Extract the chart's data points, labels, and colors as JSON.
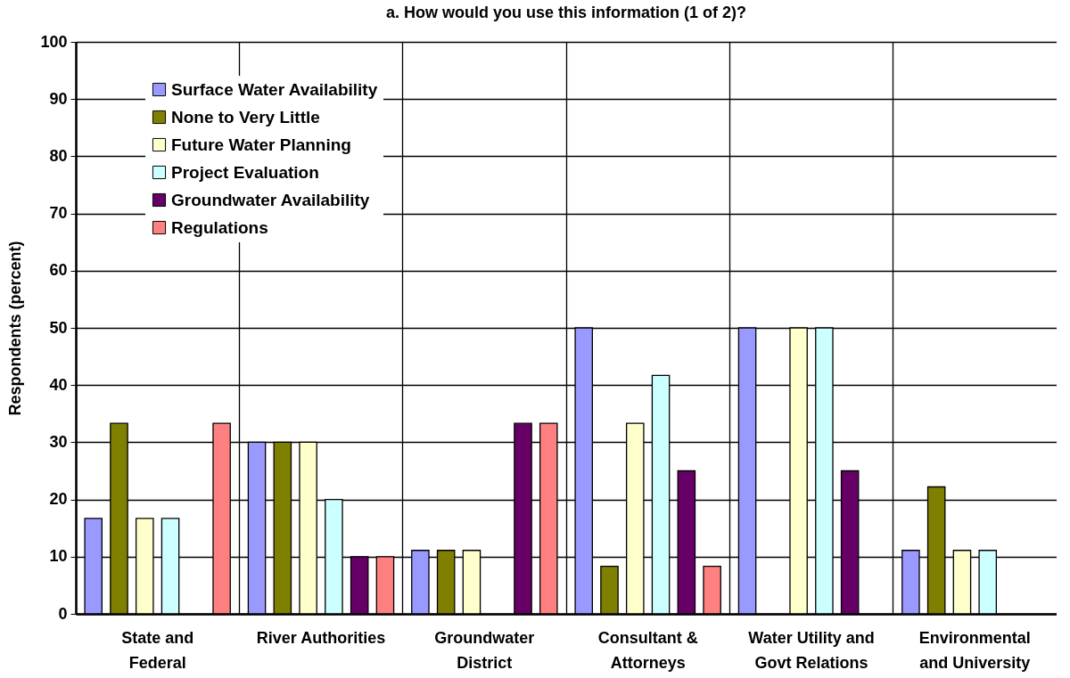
{
  "chart_data": {
    "type": "bar",
    "title": "a. How would you use this information (1 of 2)?",
    "ylabel": "Respondents (percent)",
    "categories": [
      "State and Federal",
      "River Authorities",
      "Groundwater District",
      "Consultant & Attorneys",
      "Water Utility and Govt Relations",
      "Environmental and University"
    ],
    "series": [
      {
        "name": "Surface Water Availability",
        "color": "#9999ff",
        "values": [
          16.7,
          30,
          11.1,
          50,
          50,
          11.1
        ]
      },
      {
        "name": "None to Very Little",
        "color": "#808000",
        "values": [
          33.3,
          30,
          11.1,
          8.3,
          0,
          22.2
        ]
      },
      {
        "name": "Future Water Planning",
        "color": "#ffffcc",
        "values": [
          16.7,
          30,
          11.1,
          33.3,
          50,
          11.1
        ]
      },
      {
        "name": "Project Evaluation",
        "color": "#ccffff",
        "values": [
          16.7,
          20,
          0,
          41.7,
          50,
          11.1
        ]
      },
      {
        "name": "Groundwater Availability",
        "color": "#660066",
        "values": [
          0,
          10,
          33.3,
          25,
          25,
          0
        ]
      },
      {
        "name": "Regulations",
        "color": "#ff8080",
        "values": [
          33.3,
          10,
          33.3,
          8.3,
          0,
          0
        ]
      }
    ],
    "ylim": [
      0,
      100
    ],
    "yticks": [
      0,
      10,
      20,
      30,
      40,
      50,
      60,
      70,
      80,
      90,
      100
    ],
    "grid": true,
    "legend": "top left"
  }
}
